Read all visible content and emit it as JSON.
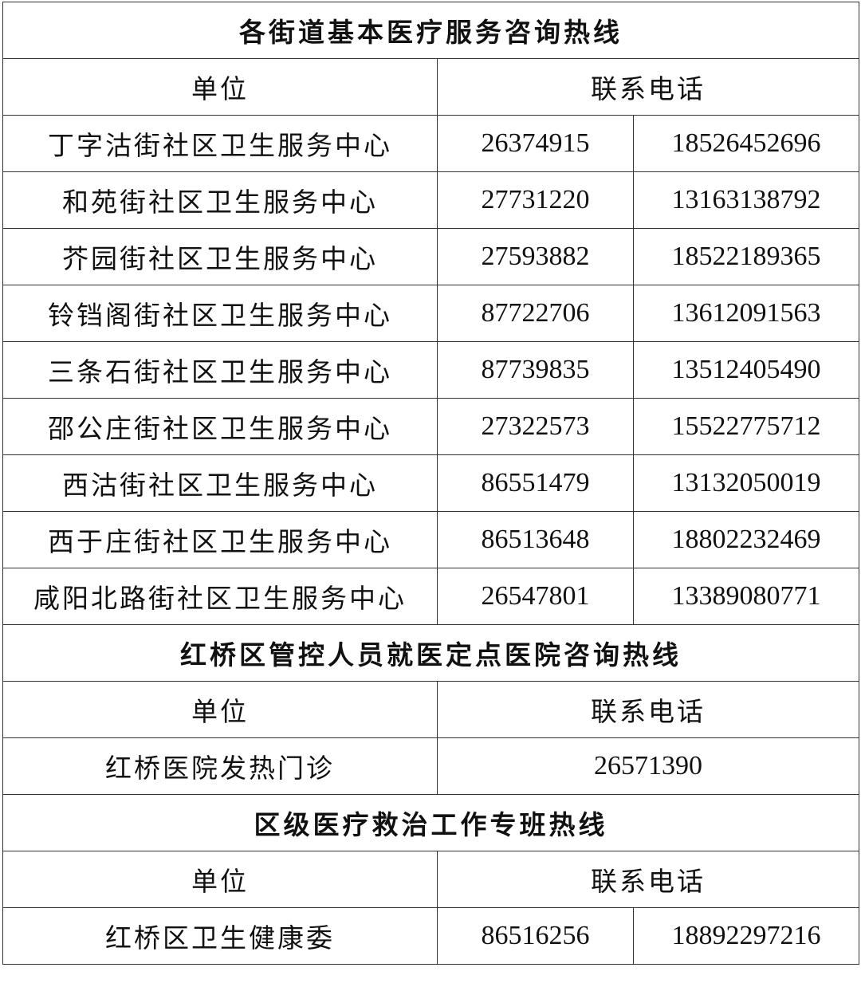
{
  "section1": {
    "title": "各街道基本医疗服务咨询热线",
    "header": {
      "unit": "单位",
      "phone": "联系电话"
    },
    "rows": [
      {
        "unit": "丁字沽街社区卫生服务中心",
        "phone1": "26374915",
        "phone2": "18526452696"
      },
      {
        "unit": "和苑街社区卫生服务中心",
        "phone1": "27731220",
        "phone2": "13163138792"
      },
      {
        "unit": "芥园街社区卫生服务中心",
        "phone1": "27593882",
        "phone2": "18522189365"
      },
      {
        "unit": "铃铛阁街社区卫生服务中心",
        "phone1": "87722706",
        "phone2": "13612091563"
      },
      {
        "unit": "三条石街社区卫生服务中心",
        "phone1": "87739835",
        "phone2": "13512405490"
      },
      {
        "unit": "邵公庄街社区卫生服务中心",
        "phone1": "27322573",
        "phone2": "15522775712"
      },
      {
        "unit": "西沽街社区卫生服务中心",
        "phone1": "86551479",
        "phone2": "13132050019"
      },
      {
        "unit": "西于庄街社区卫生服务中心",
        "phone1": "86513648",
        "phone2": "18802232469"
      },
      {
        "unit": "咸阳北路街社区卫生服务中心",
        "phone1": "26547801",
        "phone2": "13389080771"
      }
    ]
  },
  "section2": {
    "title": "红桥区管控人员就医定点医院咨询热线",
    "header": {
      "unit": "单位",
      "phone": "联系电话"
    },
    "rows": [
      {
        "unit": "红桥医院发热门诊",
        "phone1": "26571390"
      }
    ]
  },
  "section3": {
    "title": "区级医疗救治工作专班热线",
    "header": {
      "unit": "单位",
      "phone": "联系电话"
    },
    "rows": [
      {
        "unit": "红桥区卫生健康委",
        "phone1": "86516256",
        "phone2": "18892297216"
      }
    ]
  }
}
